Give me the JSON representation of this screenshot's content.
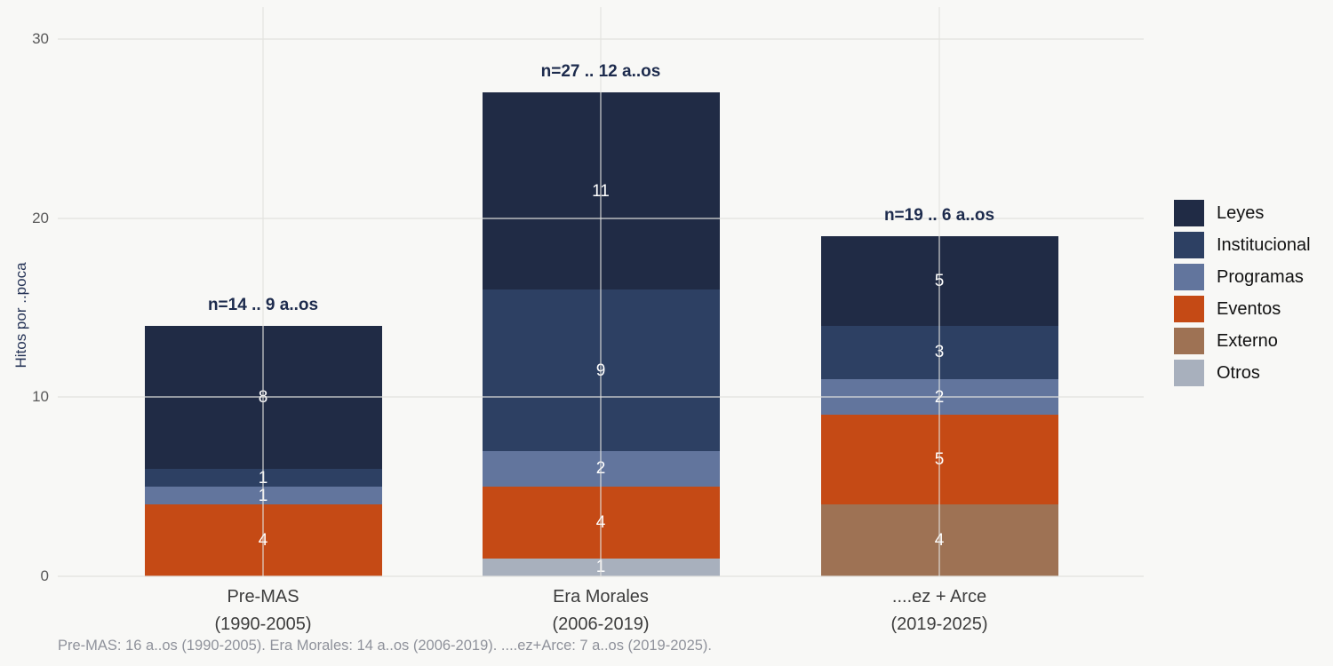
{
  "chart_data": {
    "type": "bar",
    "stacked": true,
    "title": "",
    "xlabel": "",
    "ylabel": "Hitos por ..poca",
    "ylim": [
      0,
      30
    ],
    "yticks": [
      0,
      10,
      20,
      30
    ],
    "grid": true,
    "legend_position": "right",
    "categories": [
      {
        "line1": "Pre-MAS",
        "line2": "(1990-2005)",
        "annotation": "n=14 .. 9 a..os",
        "total": 14
      },
      {
        "line1": "Era Morales",
        "line2": "(2006-2019)",
        "annotation": "n=27 .. 12 a..os",
        "total": 27
      },
      {
        "line1": "....ez + Arce",
        "line2": "(2019-2025)",
        "annotation": "n=19 .. 6 a..os",
        "total": 19
      }
    ],
    "series": [
      {
        "name": "Leyes",
        "color": "#202b45",
        "values": [
          8,
          11,
          5
        ]
      },
      {
        "name": "Institucional",
        "color": "#2d4063",
        "values": [
          1,
          9,
          3
        ]
      },
      {
        "name": "Programas",
        "color": "#62759d",
        "values": [
          1,
          2,
          2
        ]
      },
      {
        "name": "Eventos",
        "color": "#c54a15",
        "values": [
          4,
          4,
          5
        ]
      },
      {
        "name": "Externo",
        "color": "#9e7254",
        "values": [
          0,
          0,
          4
        ]
      },
      {
        "name": "Otros",
        "color": "#a8b0bd",
        "values": [
          0,
          1,
          0
        ]
      }
    ],
    "caption": "Pre-MAS: 16 a..os (1990-2005). Era Morales: 14 a..os (2006-2019). ....ez+Arce: 7 a..os (2019-2025)."
  },
  "colors": {
    "background": "#f8f8f6",
    "gridline": "#e1e1de",
    "annotation_text": "#1d2b4d",
    "axis_tick_text": "#595959",
    "category_text": "#3d3d3d",
    "caption_text": "#8f929b",
    "y_title_text": "#263457",
    "bar_value_text": "#ffffff"
  }
}
